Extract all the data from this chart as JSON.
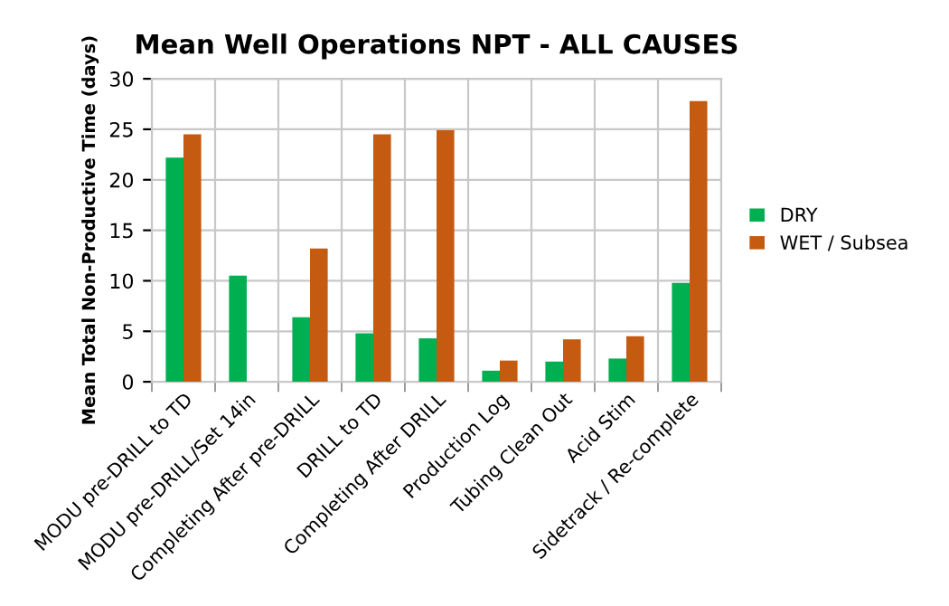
{
  "chart_data": {
    "type": "bar",
    "title": "Mean Well Operations NPT - ALL CAUSES",
    "ylabel": "Mean Total Non-Productive Time (days)",
    "categories": [
      "MODU pre-DRILL to TD",
      "MODU pre-DRILL/Set 14in",
      "Completing After pre-DRILL",
      "DRILL to TD",
      "Completing After DRILL",
      "Production Log",
      "Tubing Clean Out",
      "Acid Stim",
      "Sidetrack / Re-complete"
    ],
    "series": [
      {
        "name": "DRY",
        "color": "#00b050",
        "values": [
          22.2,
          10.5,
          6.4,
          4.8,
          4.3,
          1.1,
          2.0,
          2.3,
          9.8
        ]
      },
      {
        "name": "WET / Subsea",
        "color": "#c55a11",
        "values": [
          24.5,
          null,
          13.2,
          24.5,
          24.9,
          2.1,
          4.2,
          4.5,
          27.8
        ]
      }
    ],
    "ylim": [
      0,
      30
    ],
    "yticks": [
      0,
      5,
      10,
      15,
      20,
      25,
      30
    ],
    "grid": true,
    "legend": "right"
  }
}
